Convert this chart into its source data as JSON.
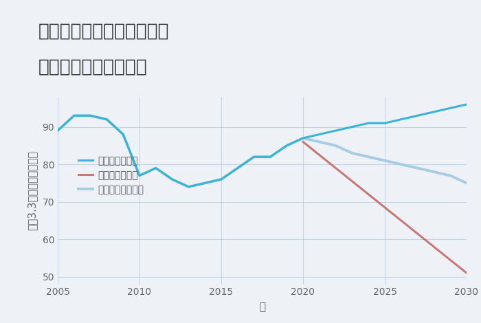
{
  "title_line1": "千葉県匝瑳市八日市場ホの",
  "title_line2": "中古戸建ての価格推移",
  "xlabel": "年",
  "ylabel": "坪（3.3㎡）単価（万円）",
  "background_color": "#eef2f7",
  "plot_bg_color": "#eef2f7",
  "grid_color": "#c5d5e5",
  "xlim": [
    2005,
    2030
  ],
  "ylim": [
    48,
    98
  ],
  "yticks": [
    50,
    60,
    70,
    80,
    90
  ],
  "xticks": [
    2005,
    2010,
    2015,
    2020,
    2025,
    2030
  ],
  "good_scenario": {
    "x": [
      2005,
      2006,
      2007,
      2008,
      2009,
      2010,
      2011,
      2012,
      2013,
      2014,
      2015,
      2016,
      2017,
      2018,
      2019,
      2020,
      2021,
      2022,
      2023,
      2024,
      2025,
      2026,
      2027,
      2028,
      2029,
      2030
    ],
    "y": [
      89,
      93,
      93,
      92,
      88,
      77,
      79,
      76,
      74,
      75,
      76,
      79,
      82,
      82,
      85,
      87,
      88,
      89,
      90,
      91,
      91,
      92,
      93,
      94,
      95,
      96
    ],
    "color": "#3ab4d4",
    "linewidth": 2.2,
    "label": "グッドシナリオ"
  },
  "bad_scenario": {
    "x": [
      2020,
      2030
    ],
    "y": [
      86,
      51
    ],
    "color": "#c87878",
    "linewidth": 2.2,
    "label": "バッドシナリオ"
  },
  "normal_scenario": {
    "x": [
      2005,
      2006,
      2007,
      2008,
      2009,
      2010,
      2011,
      2012,
      2013,
      2014,
      2015,
      2016,
      2017,
      2018,
      2019,
      2020,
      2021,
      2022,
      2023,
      2024,
      2025,
      2026,
      2027,
      2028,
      2029,
      2030
    ],
    "y": [
      89,
      93,
      93,
      92,
      88,
      77,
      79,
      76,
      74,
      75,
      76,
      79,
      82,
      82,
      85,
      87,
      86,
      85,
      83,
      82,
      81,
      80,
      79,
      78,
      77,
      75
    ],
    "color": "#a8cce0",
    "linewidth": 2.8,
    "label": "ノーマルシナリオ"
  },
  "title_fontsize": 19,
  "axis_fontsize": 11,
  "legend_fontsize": 10,
  "tick_fontsize": 10
}
